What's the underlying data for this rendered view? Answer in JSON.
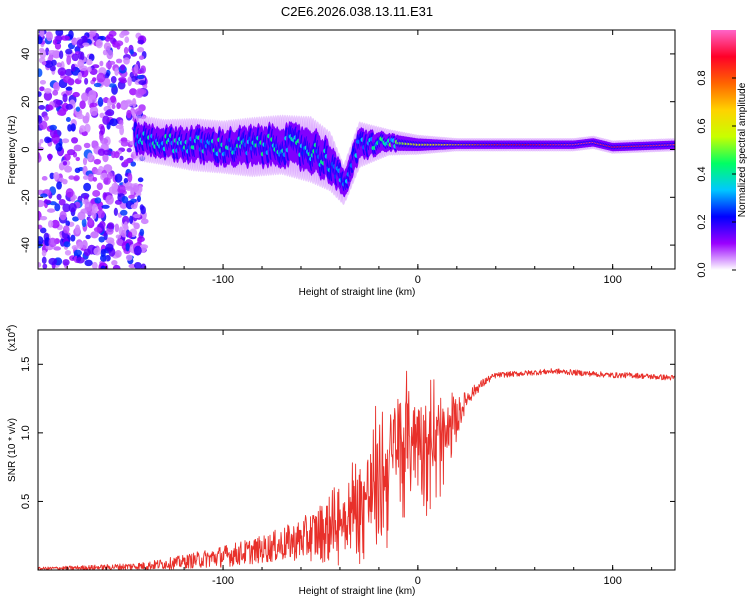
{
  "title": "C2E6.2026.038.13.11.E31",
  "colors": {
    "snr_line": "#e8302a",
    "axis": "#000000",
    "background": "#ffffff"
  },
  "chart_data": [
    {
      "type": "heatmap",
      "name": "spectrogram",
      "xlabel": "Height of straight line (km)",
      "ylabel": "Frequency (Hz)",
      "xlim": [
        -195,
        132
      ],
      "ylim": [
        -50,
        50
      ],
      "xticks": [
        -100,
        0,
        100
      ],
      "xtick_labels": [
        "-100",
        "0",
        "100"
      ],
      "yticks": [
        -40,
        -20,
        0,
        20,
        40
      ],
      "ytick_labels": [
        "-40",
        "-20",
        "0",
        "20",
        "40"
      ],
      "ridge": [
        {
          "x": -145,
          "f": 5,
          "amp": 0.35,
          "spread": 7
        },
        {
          "x": -130,
          "f": 3,
          "amp": 0.4,
          "spread": 7
        },
        {
          "x": -115,
          "f": 2,
          "amp": 0.4,
          "spread": 8
        },
        {
          "x": -100,
          "f": 1,
          "amp": 0.4,
          "spread": 8
        },
        {
          "x": -85,
          "f": 1,
          "amp": 0.4,
          "spread": 9
        },
        {
          "x": -70,
          "f": 2,
          "amp": 0.4,
          "spread": 9
        },
        {
          "x": -55,
          "f": 0,
          "amp": 0.4,
          "spread": 10
        },
        {
          "x": -45,
          "f": -5,
          "amp": 0.38,
          "spread": 9
        },
        {
          "x": -38,
          "f": -15,
          "amp": 0.3,
          "spread": 6
        },
        {
          "x": -30,
          "f": 2,
          "amp": 0.35,
          "spread": 7
        },
        {
          "x": -15,
          "f": 3,
          "amp": 0.45,
          "spread": 4
        },
        {
          "x": 0,
          "f": 2,
          "amp": 0.6,
          "spread": 3
        },
        {
          "x": 20,
          "f": 2,
          "amp": 0.7,
          "spread": 2
        },
        {
          "x": 40,
          "f": 2,
          "amp": 0.85,
          "spread": 2
        },
        {
          "x": 60,
          "f": 2,
          "amp": 0.9,
          "spread": 2
        },
        {
          "x": 80,
          "f": 2,
          "amp": 0.95,
          "spread": 2
        },
        {
          "x": 90,
          "f": 3,
          "amp": 0.95,
          "spread": 2
        },
        {
          "x": 100,
          "f": 1,
          "amp": 0.9,
          "spread": 2
        },
        {
          "x": 132,
          "f": 2,
          "amp": 0.95,
          "spread": 2
        }
      ],
      "noise_region_x": [
        -195,
        -140
      ]
    },
    {
      "type": "colorbar",
      "name": "amplitude-colorbar",
      "label": "Normalized spectral amplitude",
      "range": [
        0,
        1
      ],
      "ticks": [
        0.0,
        0.2,
        0.4,
        0.6,
        0.8
      ],
      "tick_labels": [
        "0.0",
        "0.2",
        "0.4",
        "0.6",
        "0.8"
      ],
      "colormap": [
        "#ffffff",
        "#9a00ff",
        "#0000ff",
        "#00c8ff",
        "#00ff64",
        "#c8ff00",
        "#ffd200",
        "#ff6400",
        "#ff0028",
        "#ff64c8"
      ]
    },
    {
      "type": "line",
      "name": "snr",
      "xlabel": "Height of straight line (km)",
      "ylabel": "SNR (10 * v/v)",
      "scale_note": "(x10",
      "scale_exponent": "4",
      "scale_close": ")",
      "xlim": [
        -195,
        132
      ],
      "ylim": [
        0,
        1.75
      ],
      "xticks": [
        -100,
        0,
        100
      ],
      "xtick_labels": [
        "-100",
        "0",
        "100"
      ],
      "yticks": [
        0.5,
        1.0,
        1.5
      ],
      "ytick_labels": [
        "0.5",
        "1.0",
        "1.5"
      ],
      "envelope_x": [
        -195,
        -160,
        -140,
        -120,
        -100,
        -80,
        -60,
        -45,
        -35,
        -28,
        -22,
        -18,
        -12,
        -5,
        0,
        5,
        10,
        15,
        20,
        25,
        30,
        35,
        40,
        50,
        60,
        70,
        80,
        90,
        100,
        110,
        120,
        132
      ],
      "envelope_base": [
        0.01,
        0.02,
        0.03,
        0.06,
        0.1,
        0.15,
        0.22,
        0.3,
        0.4,
        0.5,
        0.6,
        0.7,
        0.85,
        0.95,
        1.0,
        0.95,
        0.9,
        0.95,
        1.1,
        1.25,
        1.32,
        1.38,
        1.42,
        1.43,
        1.44,
        1.45,
        1.44,
        1.43,
        1.42,
        1.42,
        1.41,
        1.4
      ],
      "envelope_noise": [
        0.01,
        0.02,
        0.03,
        0.05,
        0.08,
        0.1,
        0.15,
        0.25,
        0.35,
        0.45,
        0.5,
        0.55,
        0.5,
        0.45,
        0.4,
        0.45,
        0.55,
        0.35,
        0.15,
        0.06,
        0.04,
        0.03,
        0.02,
        0.02,
        0.02,
        0.02,
        0.02,
        0.02,
        0.02,
        0.02,
        0.02,
        0.02
      ]
    }
  ]
}
